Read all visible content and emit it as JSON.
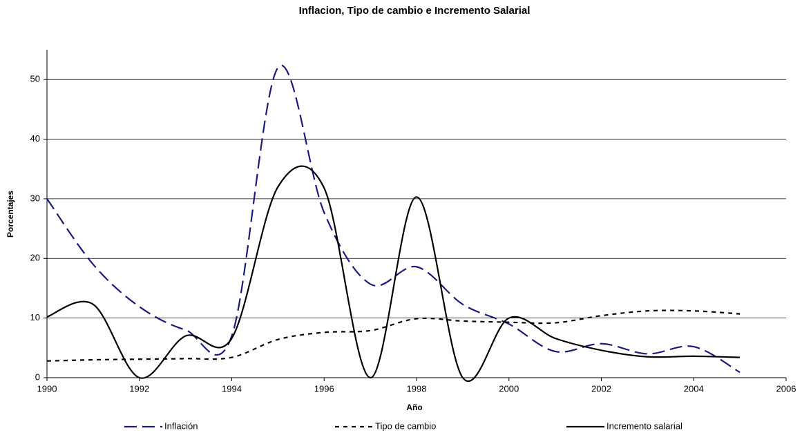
{
  "chart_data": {
    "type": "line",
    "title": "Inflacion, Tipo de cambio e Incremento Salarial",
    "x_label": "Año",
    "y_label": "Porcentajes",
    "x": [
      1990,
      1991,
      1992,
      1993,
      1994,
      1995,
      1996,
      1997,
      1998,
      1999,
      2000,
      2001,
      2002,
      2003,
      2004,
      2005
    ],
    "series": [
      {
        "name": "Inflación",
        "color": "#1a1a80",
        "dash": "long",
        "values": [
          30,
          19,
          11.9,
          8,
          7,
          52,
          27.7,
          15.7,
          18.6,
          12.3,
          9,
          4.4,
          5.7,
          4,
          5.2,
          0.9
        ]
      },
      {
        "name": "Tipo de cambio",
        "color": "#000000",
        "dash": "short",
        "values": [
          2.8,
          3,
          3.1,
          3.2,
          3.4,
          6.4,
          7.6,
          7.9,
          9.9,
          9.5,
          9.3,
          9.2,
          10.4,
          11.2,
          11.2,
          10.7
        ]
      },
      {
        "name": "Incremento salarial",
        "color": "#000000",
        "dash": "solid",
        "values": [
          10.2,
          12.3,
          0,
          7,
          6.6,
          32,
          31.8,
          0,
          30.3,
          0,
          10,
          6.6,
          4.6,
          3.5,
          3.6,
          3.4
        ]
      }
    ],
    "xlim": [
      1990,
      2006
    ],
    "xticks": [
      1990,
      1992,
      1994,
      1996,
      1998,
      2000,
      2002,
      2004,
      2006
    ],
    "ylim": [
      0,
      55
    ],
    "yticks": [
      0,
      10,
      20,
      30,
      40,
      50
    ],
    "grid": true,
    "legend": "bottom"
  }
}
